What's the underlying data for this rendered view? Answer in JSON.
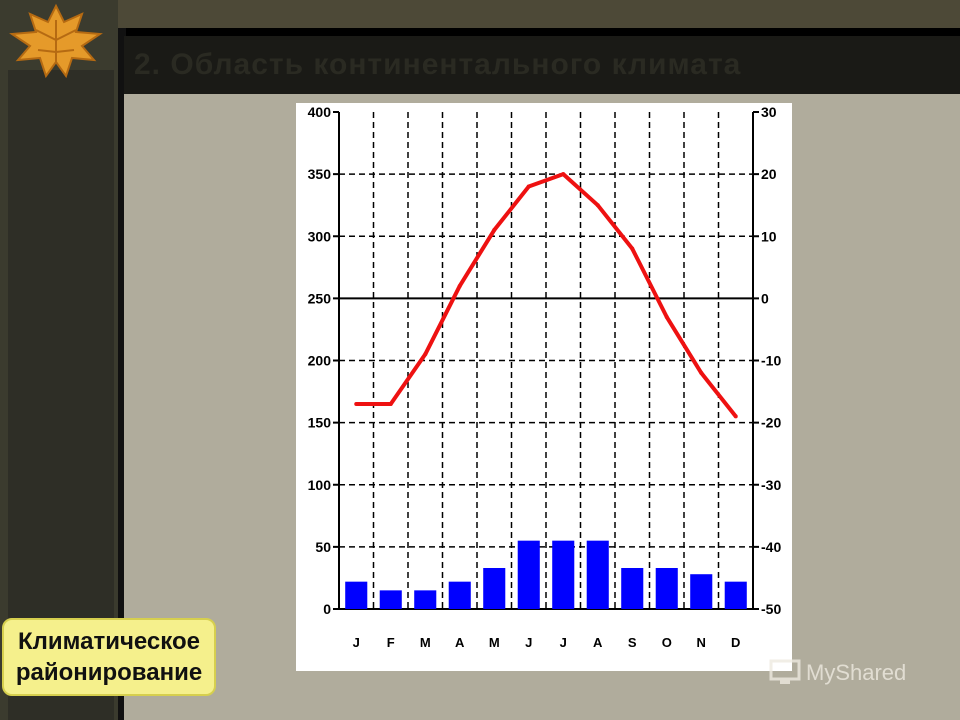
{
  "slide": {
    "title": "2. Область континентального климата",
    "label_line1": "Климатическое",
    "label_line2": "районирование",
    "watermark": "MyShared"
  },
  "colors": {
    "bar": "#0000ff",
    "line": "#ee1111",
    "label_bg": "#f5f08c",
    "panel_bg": "#b0ac9c"
  },
  "chart_data": {
    "type": "bar",
    "categories": [
      "J",
      "F",
      "M",
      "A",
      "M",
      "J",
      "J",
      "A",
      "S",
      "O",
      "N",
      "D"
    ],
    "series": [
      {
        "kind": "bar",
        "axis": "left",
        "values": [
          22,
          15,
          15,
          22,
          33,
          55,
          55,
          55,
          33,
          33,
          28,
          22
        ]
      },
      {
        "kind": "line",
        "axis": "right",
        "values": [
          -17,
          -17,
          -9,
          2,
          11,
          18,
          20,
          15,
          8,
          -3,
          -12,
          -19
        ]
      }
    ],
    "left_axis": {
      "ylim": [
        0,
        400
      ],
      "ticks": [
        0,
        50,
        100,
        150,
        200,
        250,
        300,
        350,
        400
      ]
    },
    "right_axis": {
      "ylim": [
        -50,
        30
      ],
      "ticks": [
        -50,
        -40,
        -30,
        -20,
        -10,
        0,
        10,
        20,
        30
      ]
    },
    "grid": true
  }
}
